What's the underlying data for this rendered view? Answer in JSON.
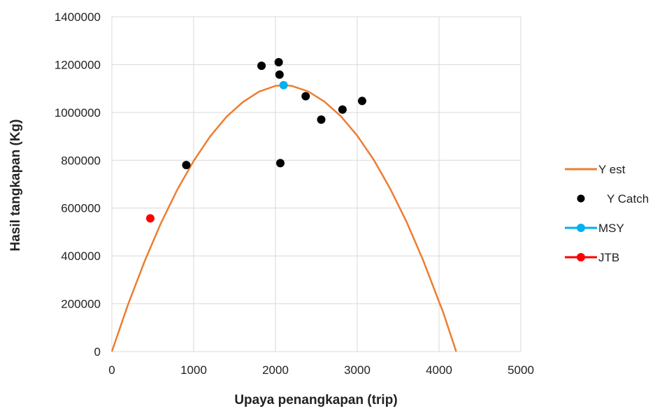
{
  "chart_data": {
    "type": "scatter",
    "xlabel": "Upaya penangkapan (trip)",
    "ylabel": "Hasil tangkapan (Kg)",
    "xlim": [
      0,
      5000
    ],
    "ylim": [
      0,
      1400000
    ],
    "x_ticks": [
      0,
      1000,
      2000,
      3000,
      4000,
      5000
    ],
    "y_ticks": [
      0,
      200000,
      400000,
      600000,
      800000,
      1000000,
      1200000,
      1400000
    ],
    "x_tick_labels": [
      "0",
      "1000",
      "2000",
      "3000",
      "4000",
      "5000"
    ],
    "y_tick_labels": [
      "0",
      "200000",
      "400000",
      "600000",
      "800000",
      "1000000",
      "1200000",
      "1400000"
    ],
    "grid": true,
    "legend_position": "right",
    "series": [
      {
        "name": "Y est",
        "kind": "line",
        "color": "#ED7D31",
        "x": [
          0,
          200,
          400,
          600,
          800,
          1000,
          1200,
          1400,
          1600,
          1800,
          2000,
          2100,
          2200,
          2400,
          2600,
          2800,
          3000,
          3200,
          3400,
          3600,
          3800,
          4000,
          4050,
          4210
        ],
        "y": [
          0,
          199000,
          377000,
          537000,
          677000,
          797000,
          899000,
          981000,
          1043000,
          1087000,
          1111000,
          1114000,
          1111000,
          1088000,
          1045000,
          984000,
          903000,
          803000,
          683000,
          545000,
          387000,
          209000,
          165000,
          0
        ]
      },
      {
        "name": "Y Catch",
        "kind": "scatter",
        "color": "#000000",
        "x": [
          910,
          1830,
          2040,
          2050,
          2060,
          2370,
          2560,
          2820,
          3060
        ],
        "y": [
          780000,
          1195000,
          1210000,
          1158000,
          788000,
          1068000,
          970000,
          1012000,
          1048000
        ]
      },
      {
        "name": "MSY",
        "kind": "scatter",
        "color": "#00B0F0",
        "x": [
          2100
        ],
        "y": [
          1114000
        ]
      },
      {
        "name": "JTB",
        "kind": "scatter",
        "color": "#FF0000",
        "x": [
          470
        ],
        "y": [
          557000
        ]
      }
    ]
  }
}
